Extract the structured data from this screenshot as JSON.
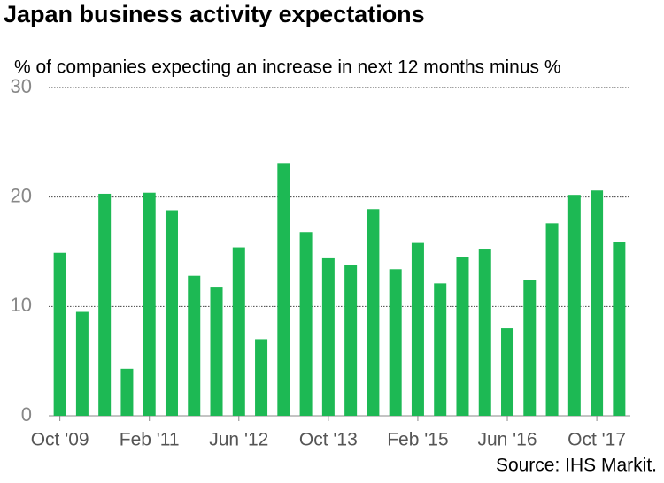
{
  "chart_data": {
    "type": "bar",
    "title": "Japan business activity expectations",
    "subtitle": "% of companies expecting an increase in next 12 months minus %",
    "source": "Source: IHS Markit.",
    "categories": [
      "Oct '09",
      null,
      null,
      null,
      "Feb '11",
      null,
      null,
      null,
      "Jun '12",
      null,
      null,
      null,
      "Oct '13",
      null,
      null,
      null,
      "Feb '15",
      null,
      null,
      null,
      "Jun '16",
      null,
      null,
      null,
      "Oct '17",
      null
    ],
    "values": [
      14.9,
      9.5,
      20.3,
      4.3,
      20.4,
      18.8,
      12.8,
      11.8,
      15.4,
      7.0,
      23.1,
      16.8,
      14.4,
      13.8,
      18.9,
      13.4,
      15.8,
      12.1,
      14.5,
      15.2,
      8.0,
      12.4,
      17.6,
      20.2,
      20.6,
      15.9
    ],
    "color": "#1db954",
    "ylim": [
      0,
      30
    ],
    "yticks": [
      0,
      10,
      20,
      30
    ],
    "grid": true
  }
}
